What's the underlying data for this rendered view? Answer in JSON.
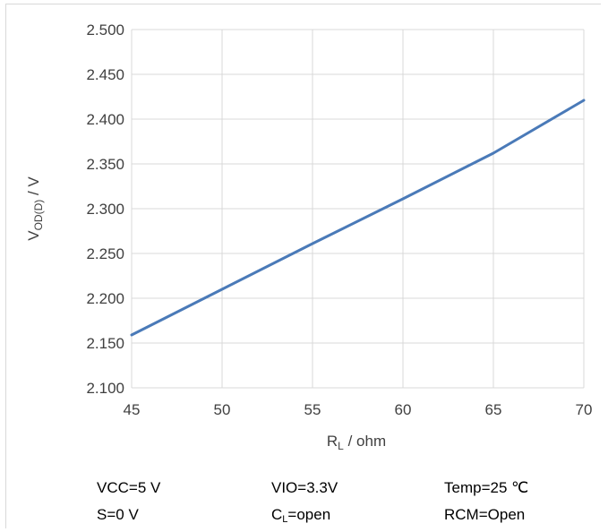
{
  "chart_data": {
    "type": "line",
    "title": "",
    "xlabel": {
      "main": "R",
      "sub": "L",
      "suffix": " / ohm"
    },
    "ylabel": {
      "main": "V",
      "sub": "OD(D)",
      "suffix": " / V"
    },
    "xlim": [
      45,
      70
    ],
    "ylim": [
      2.1,
      2.5
    ],
    "x_ticks": [
      "45",
      "50",
      "55",
      "60",
      "65",
      "70"
    ],
    "y_ticks": [
      "2.100",
      "2.150",
      "2.200",
      "2.250",
      "2.300",
      "2.350",
      "2.400",
      "2.450",
      "2.500"
    ],
    "grid": true,
    "legend": "none",
    "series": [
      {
        "color": "#4a7ab8",
        "x": [
          45,
          50,
          55,
          60,
          65,
          70
        ],
        "y": [
          2.159,
          2.21,
          2.261,
          2.311,
          2.362,
          2.421
        ]
      }
    ]
  },
  "conditions": {
    "vcc": "VCC=5 V",
    "vio": "VIO=3.3V",
    "temp": "Temp=25 ℃",
    "s": "S=0 V",
    "cl": {
      "main": "C",
      "sub": "L",
      "suffix": "=open"
    },
    "rcm": "RCM=Open"
  }
}
